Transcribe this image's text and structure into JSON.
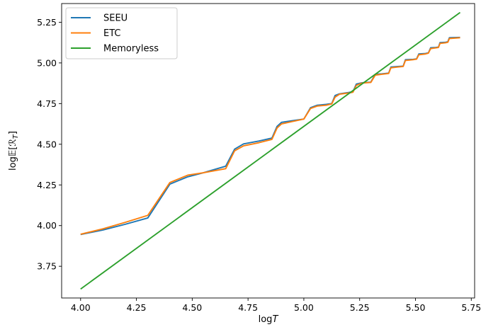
{
  "chart_data": {
    "type": "line",
    "xlabel": "log",
    "xlabel_var": "T",
    "ylabel": "log",
    "ylabel_expectation": "𝔼[",
    "ylabel_var": "ℛ",
    "ylabel_sub": "T",
    "ylabel_close": "]",
    "xlim": [
      3.915,
      5.765
    ],
    "ylim": [
      3.555,
      5.365
    ],
    "xticks": [
      4.0,
      4.25,
      4.5,
      4.75,
      5.0,
      5.25,
      5.5,
      5.75
    ],
    "xtick_labels": [
      "4.00",
      "4.25",
      "4.50",
      "4.75",
      "5.00",
      "5.25",
      "5.50",
      "5.75"
    ],
    "yticks": [
      3.75,
      4.0,
      4.25,
      4.5,
      4.75,
      5.0,
      5.25
    ],
    "ytick_labels": [
      "3.75",
      "4.00",
      "4.25",
      "4.50",
      "4.75",
      "5.00",
      "5.25"
    ],
    "grid": false,
    "legend_position": "top-left",
    "series": [
      {
        "name": "SEEU",
        "color": "#1f77b4",
        "points": [
          [
            4.0,
            3.945
          ],
          [
            4.1,
            3.973
          ],
          [
            4.2,
            4.008
          ],
          [
            4.301,
            4.047
          ],
          [
            4.4,
            4.255
          ],
          [
            4.48,
            4.3
          ],
          [
            4.55,
            4.325
          ],
          [
            4.65,
            4.365
          ],
          [
            4.69,
            4.47
          ],
          [
            4.73,
            4.502
          ],
          [
            4.8,
            4.52
          ],
          [
            4.857,
            4.538
          ],
          [
            4.88,
            4.61
          ],
          [
            4.9,
            4.635
          ],
          [
            4.95,
            4.645
          ],
          [
            5.0,
            4.655
          ],
          [
            5.03,
            4.725
          ],
          [
            5.06,
            4.74
          ],
          [
            5.1,
            4.745
          ],
          [
            5.125,
            4.75
          ],
          [
            5.14,
            4.8
          ],
          [
            5.16,
            4.81
          ],
          [
            5.2,
            4.818
          ],
          [
            5.22,
            4.823
          ],
          [
            5.235,
            4.87
          ],
          [
            5.26,
            4.878
          ],
          [
            5.3,
            4.882
          ],
          [
            5.32,
            4.93
          ],
          [
            5.35,
            4.933
          ],
          [
            5.38,
            4.937
          ],
          [
            5.39,
            4.975
          ],
          [
            5.42,
            4.978
          ],
          [
            5.445,
            4.98
          ],
          [
            5.455,
            5.02
          ],
          [
            5.49,
            5.022
          ],
          [
            5.505,
            5.025
          ],
          [
            5.515,
            5.055
          ],
          [
            5.545,
            5.058
          ],
          [
            5.558,
            5.062
          ],
          [
            5.568,
            5.093
          ],
          [
            5.59,
            5.095
          ],
          [
            5.603,
            5.097
          ],
          [
            5.61,
            5.125
          ],
          [
            5.635,
            5.127
          ],
          [
            5.645,
            5.13
          ],
          [
            5.652,
            5.155
          ],
          [
            5.7,
            5.157
          ]
        ]
      },
      {
        "name": "ETC",
        "color": "#ff7f0e",
        "points": [
          [
            4.0,
            3.947
          ],
          [
            4.1,
            3.98
          ],
          [
            4.2,
            4.02
          ],
          [
            4.301,
            4.063
          ],
          [
            4.4,
            4.265
          ],
          [
            4.48,
            4.31
          ],
          [
            4.55,
            4.325
          ],
          [
            4.65,
            4.35
          ],
          [
            4.69,
            4.46
          ],
          [
            4.73,
            4.49
          ],
          [
            4.8,
            4.51
          ],
          [
            4.857,
            4.53
          ],
          [
            4.88,
            4.6
          ],
          [
            4.9,
            4.625
          ],
          [
            4.95,
            4.64
          ],
          [
            5.0,
            4.655
          ],
          [
            5.03,
            4.72
          ],
          [
            5.06,
            4.735
          ],
          [
            5.1,
            4.74
          ],
          [
            5.125,
            4.748
          ],
          [
            5.14,
            4.79
          ],
          [
            5.16,
            4.808
          ],
          [
            5.2,
            4.815
          ],
          [
            5.22,
            4.82
          ],
          [
            5.235,
            4.862
          ],
          [
            5.26,
            4.876
          ],
          [
            5.3,
            4.88
          ],
          [
            5.32,
            4.925
          ],
          [
            5.35,
            4.93
          ],
          [
            5.38,
            4.935
          ],
          [
            5.39,
            4.97
          ],
          [
            5.42,
            4.975
          ],
          [
            5.445,
            4.978
          ],
          [
            5.455,
            5.015
          ],
          [
            5.49,
            5.02
          ],
          [
            5.505,
            5.023
          ],
          [
            5.515,
            5.05
          ],
          [
            5.545,
            5.055
          ],
          [
            5.558,
            5.06
          ],
          [
            5.568,
            5.088
          ],
          [
            5.59,
            5.092
          ],
          [
            5.603,
            5.095
          ],
          [
            5.61,
            5.12
          ],
          [
            5.635,
            5.124
          ],
          [
            5.645,
            5.127
          ],
          [
            5.652,
            5.15
          ],
          [
            5.7,
            5.155
          ]
        ]
      },
      {
        "name": "Memoryless",
        "color": "#2ca02c",
        "points": [
          [
            4.0,
            3.61
          ],
          [
            5.7,
            5.31
          ]
        ]
      }
    ]
  }
}
